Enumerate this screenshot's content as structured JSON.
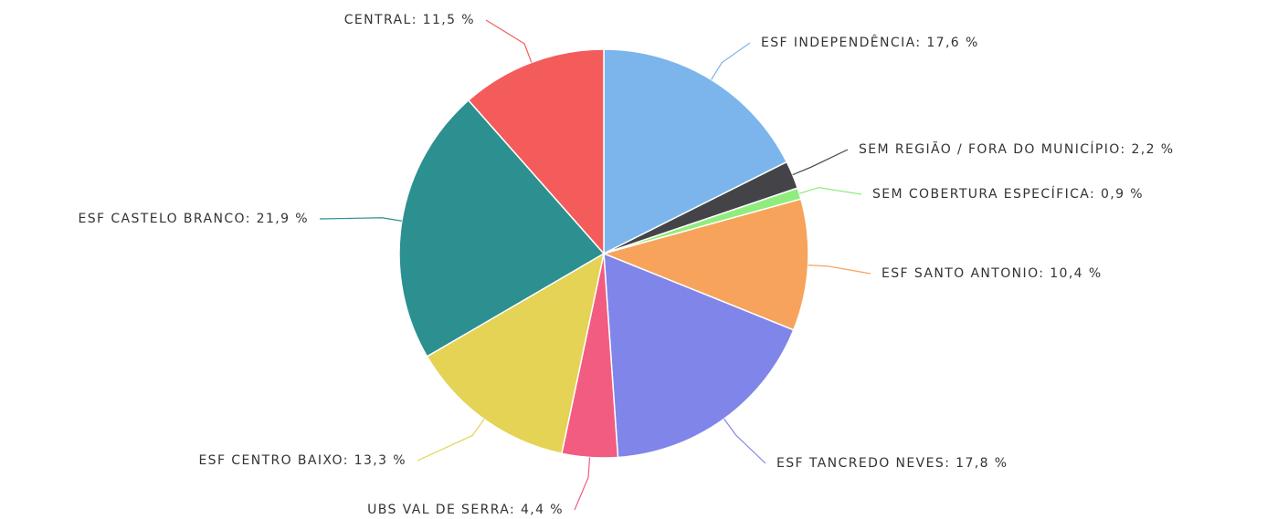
{
  "chart_data": {
    "type": "pie",
    "categories": [
      "ESF INDEPENDÊNCIA",
      "SEM REGIÃO / FORA DO MUNICÍPIO",
      "SEM COBERTURA ESPECÍFICA",
      "ESF SANTO ANTONIO",
      "ESF TANCREDO NEVES",
      "UBS VAL DE SERRA",
      "ESF CENTRO BAIXO",
      "ESF CASTELO BRANCO",
      "CENTRAL"
    ],
    "values": [
      17.6,
      2.2,
      0.9,
      10.4,
      17.8,
      4.4,
      13.3,
      21.9,
      11.5
    ],
    "value_labels": [
      "17,6 %",
      "2,2 %",
      "0,9 %",
      "10,4 %",
      "17,8 %",
      "4,4 %",
      "13,3 %",
      "21,9 %",
      "11,5 %"
    ],
    "label_separator": ": ",
    "colors": [
      "#7cb5ec",
      "#434348",
      "#90ed7d",
      "#f7a35c",
      "#8085e9",
      "#f15c80",
      "#e4d354",
      "#2b908f",
      "#f45b5b"
    ]
  }
}
